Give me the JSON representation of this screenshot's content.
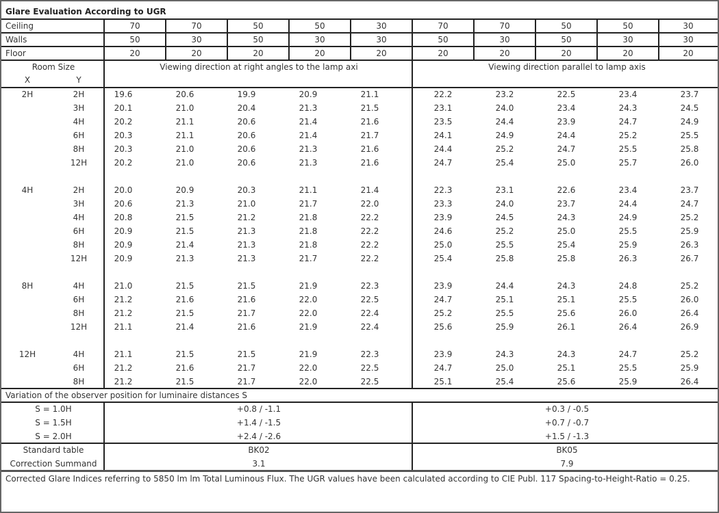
{
  "title": "Glare Evaluation According to UGR",
  "reflectances": [
    {
      "label": "Ceiling",
      "values": [
        "70",
        "70",
        "50",
        "50",
        "30",
        "70",
        "70",
        "50",
        "50",
        "30"
      ]
    },
    {
      "label": "Walls",
      "values": [
        "50",
        "30",
        "50",
        "30",
        "30",
        "50",
        "30",
        "50",
        "30",
        "30"
      ]
    },
    {
      "label": "Floor",
      "values": [
        "20",
        "20",
        "20",
        "20",
        "20",
        "20",
        "20",
        "20",
        "20",
        "20"
      ]
    }
  ],
  "room_size_label": "Room Size",
  "x_label": "X",
  "y_label": "Y",
  "direction_right_angles": "Viewing direction at right angles to the lamp axi",
  "direction_parallel": "Viewing direction parallel to lamp axis",
  "groups": [
    {
      "x": "2H",
      "rows": [
        {
          "y": "2H",
          "v": [
            "19.6",
            "20.6",
            "19.9",
            "20.9",
            "21.1",
            "22.2",
            "23.2",
            "22.5",
            "23.4",
            "23.7"
          ]
        },
        {
          "y": "3H",
          "v": [
            "20.1",
            "21.0",
            "20.4",
            "21.3",
            "21.5",
            "23.1",
            "24.0",
            "23.4",
            "24.3",
            "24.5"
          ]
        },
        {
          "y": "4H",
          "v": [
            "20.2",
            "21.1",
            "20.6",
            "21.4",
            "21.6",
            "23.5",
            "24.4",
            "23.9",
            "24.7",
            "24.9"
          ]
        },
        {
          "y": "6H",
          "v": [
            "20.3",
            "21.1",
            "20.6",
            "21.4",
            "21.7",
            "24.1",
            "24.9",
            "24.4",
            "25.2",
            "25.5"
          ]
        },
        {
          "y": "8H",
          "v": [
            "20.3",
            "21.0",
            "20.6",
            "21.3",
            "21.6",
            "24.4",
            "25.2",
            "24.7",
            "25.5",
            "25.8"
          ]
        },
        {
          "y": "12H",
          "v": [
            "20.2",
            "21.0",
            "20.6",
            "21.3",
            "21.6",
            "24.7",
            "25.4",
            "25.0",
            "25.7",
            "26.0"
          ]
        }
      ]
    },
    {
      "x": "4H",
      "rows": [
        {
          "y": "2H",
          "v": [
            "20.0",
            "20.9",
            "20.3",
            "21.1",
            "21.4",
            "22.3",
            "23.1",
            "22.6",
            "23.4",
            "23.7"
          ]
        },
        {
          "y": "3H",
          "v": [
            "20.6",
            "21.3",
            "21.0",
            "21.7",
            "22.0",
            "23.3",
            "24.0",
            "23.7",
            "24.4",
            "24.7"
          ]
        },
        {
          "y": "4H",
          "v": [
            "20.8",
            "21.5",
            "21.2",
            "21.8",
            "22.2",
            "23.9",
            "24.5",
            "24.3",
            "24.9",
            "25.2"
          ]
        },
        {
          "y": "6H",
          "v": [
            "20.9",
            "21.5",
            "21.3",
            "21.8",
            "22.2",
            "24.6",
            "25.2",
            "25.0",
            "25.5",
            "25.9"
          ]
        },
        {
          "y": "8H",
          "v": [
            "20.9",
            "21.4",
            "21.3",
            "21.8",
            "22.2",
            "25.0",
            "25.5",
            "25.4",
            "25.9",
            "26.3"
          ]
        },
        {
          "y": "12H",
          "v": [
            "20.9",
            "21.3",
            "21.3",
            "21.7",
            "22.2",
            "25.4",
            "25.8",
            "25.8",
            "26.3",
            "26.7"
          ]
        }
      ]
    },
    {
      "x": "8H",
      "rows": [
        {
          "y": "4H",
          "v": [
            "21.0",
            "21.5",
            "21.5",
            "21.9",
            "22.3",
            "23.9",
            "24.4",
            "24.3",
            "24.8",
            "25.2"
          ]
        },
        {
          "y": "6H",
          "v": [
            "21.2",
            "21.6",
            "21.6",
            "22.0",
            "22.5",
            "24.7",
            "25.1",
            "25.1",
            "25.5",
            "26.0"
          ]
        },
        {
          "y": "8H",
          "v": [
            "21.2",
            "21.5",
            "21.7",
            "22.0",
            "22.4",
            "25.2",
            "25.5",
            "25.6",
            "26.0",
            "26.4"
          ]
        },
        {
          "y": "12H",
          "v": [
            "21.1",
            "21.4",
            "21.6",
            "21.9",
            "22.4",
            "25.6",
            "25.9",
            "26.1",
            "26.4",
            "26.9"
          ]
        }
      ]
    },
    {
      "x": "12H",
      "rows": [
        {
          "y": "4H",
          "v": [
            "21.1",
            "21.5",
            "21.5",
            "21.9",
            "22.3",
            "23.9",
            "24.3",
            "24.3",
            "24.7",
            "25.2"
          ]
        },
        {
          "y": "6H",
          "v": [
            "21.2",
            "21.6",
            "21.7",
            "22.0",
            "22.5",
            "24.7",
            "25.0",
            "25.1",
            "25.5",
            "25.9"
          ]
        },
        {
          "y": "8H",
          "v": [
            "21.2",
            "21.5",
            "21.7",
            "22.0",
            "22.5",
            "25.1",
            "25.4",
            "25.6",
            "25.9",
            "26.4"
          ]
        }
      ]
    }
  ],
  "variation_title": "Variation of the observer position for luminaire distances S",
  "variations": [
    {
      "label": "S = 1.0H",
      "right_angles": "+0.8 / -1.1",
      "parallel": "+0.3 / -0.5"
    },
    {
      "label": "S = 1.5H",
      "right_angles": "+1.4 / -1.5",
      "parallel": "+0.7 / -0.7"
    },
    {
      "label": "S = 2.0H",
      "right_angles": "+2.4 / -2.6",
      "parallel": "+1.5 / -1.3"
    }
  ],
  "standard_table": {
    "label": "Standard table",
    "right_angles": "BK02",
    "parallel": "BK05"
  },
  "correction_summand": {
    "label": "Correction Summand",
    "right_angles": "3.1",
    "parallel": "7.9"
  },
  "footnote": "Corrected Glare Indices referring to 5850 lm lm Total Luminous Flux. The UGR values have been calculated according to CIE Publ. 117    Spacing-to-Height-Ratio = 0.25."
}
